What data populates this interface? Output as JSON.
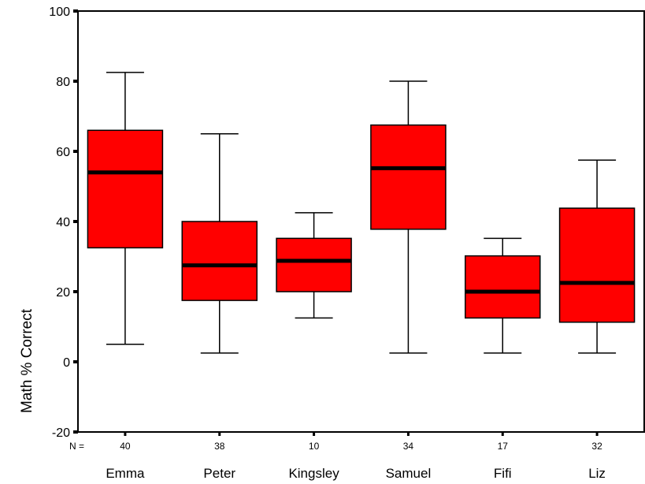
{
  "chart_data": {
    "type": "boxplot",
    "title": "",
    "xlabel": "",
    "ylabel": "Math % Correct",
    "ylim": [
      -20,
      100
    ],
    "yticks": [
      -20,
      0,
      20,
      40,
      60,
      80,
      100
    ],
    "n_prefix": "N =",
    "colors": {
      "box_fill": "#ff0000",
      "stroke": "#000000"
    },
    "categories": [
      "Emma",
      "Peter",
      "Kingsley",
      "Samuel",
      "Fifi",
      "Liz"
    ],
    "n": [
      "40",
      "38",
      "10",
      "34",
      "17",
      "32"
    ],
    "boxes": [
      {
        "min": 5,
        "q1": 32.5,
        "median": 54,
        "q3": 66,
        "max": 82.5
      },
      {
        "min": 2.5,
        "q1": 17.5,
        "median": 27.5,
        "q3": 40,
        "max": 65
      },
      {
        "min": 12.5,
        "q1": 20,
        "median": 28.8,
        "q3": 35.2,
        "max": 42.5
      },
      {
        "min": 2.5,
        "q1": 37.8,
        "median": 55.2,
        "q3": 67.5,
        "max": 80
      },
      {
        "min": 2.5,
        "q1": 12.5,
        "median": 20,
        "q3": 30.2,
        "max": 35.2
      },
      {
        "min": 2.5,
        "q1": 11.3,
        "median": 22.5,
        "q3": 43.8,
        "max": 57.5
      }
    ]
  }
}
